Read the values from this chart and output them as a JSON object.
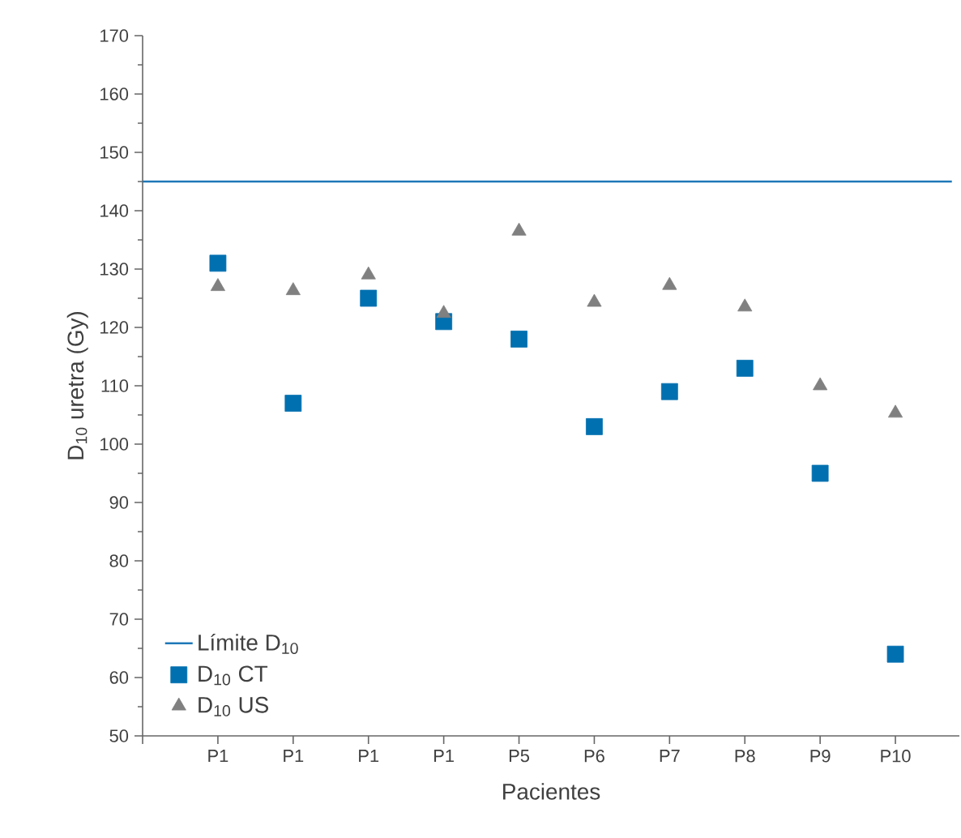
{
  "chart_data": {
    "type": "scatter",
    "xlabel": "Pacientes",
    "ylabel": "D$_{10}$ uretra (Gy)",
    "categories": [
      "P1",
      "P1",
      "P1",
      "P1",
      "P5",
      "P6",
      "P7",
      "P8",
      "P9",
      "P10"
    ],
    "series": [
      {
        "name": "D$_{10}$ CT",
        "color": "#0070b0",
        "marker": "square",
        "values": [
          131,
          107,
          125,
          121,
          118,
          103,
          109,
          113,
          95,
          64
        ]
      },
      {
        "name": "D$_{10}$ US",
        "color": "#808080",
        "marker": "triangle",
        "values": [
          127,
          126.3,
          129,
          122.4,
          136.5,
          124.3,
          127.2,
          123.5,
          110,
          105.3
        ]
      }
    ],
    "ref_lines": [
      {
        "axis": "y",
        "value": 145,
        "label": "Límite D$_{10}$",
        "color": "#1f78b8",
        "line_style": "solid"
      }
    ],
    "ylim": [
      50,
      170
    ],
    "yticks": [
      50,
      60,
      70,
      80,
      90,
      100,
      110,
      120,
      130,
      140,
      150,
      160,
      170
    ],
    "grid": false,
    "legend": "bottom left"
  }
}
